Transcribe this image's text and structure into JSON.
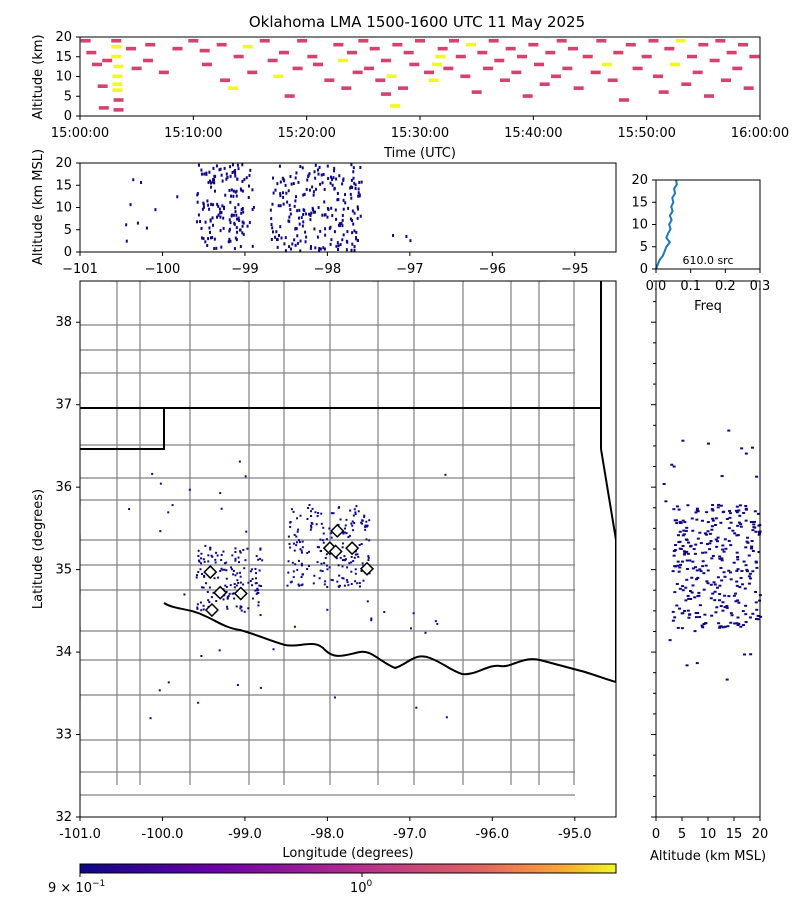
{
  "title": "Oklahoma LMA 1500-1600 UTC 11 May 2025",
  "colors": {
    "pink": "#d3436e",
    "yellow": "#f0f921",
    "navy": "#0d0887",
    "density_line": "#1f77b4",
    "county": "#808080",
    "state": "#000000"
  },
  "chart_data": [
    {
      "id": "time_height",
      "type": "heatmap",
      "xlabel": "Time (UTC)",
      "ylabel": "Altitude (km)",
      "xlim": [
        "15:00:00",
        "16:00:00"
      ],
      "ylim": [
        0,
        20
      ],
      "xticks": [
        "15:00:00",
        "15:10:00",
        "15:20:00",
        "15:30:00",
        "15:40:00",
        "15:50:00",
        "16:00:00"
      ],
      "yticks": [
        "0",
        "5",
        "10",
        "15",
        "20"
      ],
      "cells": [
        {
          "t": 3.2,
          "z": 17.5,
          "c": "yellow"
        },
        {
          "t": 3.2,
          "z": 15,
          "c": "yellow"
        },
        {
          "t": 3.4,
          "z": 12.5,
          "c": "yellow"
        },
        {
          "t": 3.3,
          "z": 10,
          "c": "yellow"
        },
        {
          "t": 3.3,
          "z": 8,
          "c": "yellow"
        },
        {
          "t": 3.3,
          "z": 6.5,
          "c": "yellow"
        },
        {
          "t": 3.2,
          "z": 19,
          "c": "pink"
        },
        {
          "t": 3.4,
          "z": 4,
          "c": "pink"
        },
        {
          "t": 3.4,
          "z": 1.5,
          "c": "pink"
        },
        {
          "t": 0.5,
          "z": 19,
          "c": "pink"
        },
        {
          "t": 1.0,
          "z": 16,
          "c": "pink"
        },
        {
          "t": 1.5,
          "z": 13,
          "c": "pink"
        },
        {
          "t": 2.0,
          "z": 7.5,
          "c": "pink"
        },
        {
          "t": 2.4,
          "z": 14,
          "c": "pink"
        },
        {
          "t": 2.1,
          "z": 2,
          "c": "pink"
        },
        {
          "t": 4.5,
          "z": 17,
          "c": "pink"
        },
        {
          "t": 5.0,
          "z": 12,
          "c": "pink"
        },
        {
          "t": 6.2,
          "z": 18,
          "c": "pink"
        },
        {
          "t": 6.0,
          "z": 14,
          "c": "pink"
        },
        {
          "t": 7.4,
          "z": 11,
          "c": "pink"
        },
        {
          "t": 8.6,
          "z": 17,
          "c": "pink"
        },
        {
          "t": 10.0,
          "z": 19,
          "c": "pink"
        },
        {
          "t": 11.0,
          "z": 16.5,
          "c": "pink"
        },
        {
          "t": 11.2,
          "z": 13,
          "c": "pink"
        },
        {
          "t": 12.5,
          "z": 18,
          "c": "pink"
        },
        {
          "t": 12.8,
          "z": 9,
          "c": "pink"
        },
        {
          "t": 13.5,
          "z": 7,
          "c": "yellow"
        },
        {
          "t": 14.0,
          "z": 15,
          "c": "pink"
        },
        {
          "t": 14.8,
          "z": 17.5,
          "c": "yellow"
        },
        {
          "t": 15.2,
          "z": 11,
          "c": "pink"
        },
        {
          "t": 16.3,
          "z": 19,
          "c": "pink"
        },
        {
          "t": 17.0,
          "z": 14,
          "c": "pink"
        },
        {
          "t": 17.5,
          "z": 10,
          "c": "yellow"
        },
        {
          "t": 18.0,
          "z": 16,
          "c": "pink"
        },
        {
          "t": 18.5,
          "z": 5,
          "c": "pink"
        },
        {
          "t": 19.2,
          "z": 12,
          "c": "pink"
        },
        {
          "t": 19.6,
          "z": 19,
          "c": "pink"
        },
        {
          "t": 20.5,
          "z": 15,
          "c": "pink"
        },
        {
          "t": 21.0,
          "z": 13,
          "c": "pink"
        },
        {
          "t": 22.0,
          "z": 9,
          "c": "pink"
        },
        {
          "t": 22.8,
          "z": 18,
          "c": "pink"
        },
        {
          "t": 23.5,
          "z": 7,
          "c": "pink"
        },
        {
          "t": 23.2,
          "z": 14,
          "c": "yellow"
        },
        {
          "t": 24.0,
          "z": 16,
          "c": "pink"
        },
        {
          "t": 24.5,
          "z": 11,
          "c": "pink"
        },
        {
          "t": 25.0,
          "z": 19,
          "c": "pink"
        },
        {
          "t": 25.5,
          "z": 12,
          "c": "pink"
        },
        {
          "t": 26.0,
          "z": 17,
          "c": "pink"
        },
        {
          "t": 26.5,
          "z": 9,
          "c": "pink"
        },
        {
          "t": 27.0,
          "z": 14,
          "c": "pink"
        },
        {
          "t": 27.5,
          "z": 10,
          "c": "yellow"
        },
        {
          "t": 27.0,
          "z": 5.5,
          "c": "pink"
        },
        {
          "t": 27.8,
          "z": 2.5,
          "c": "yellow"
        },
        {
          "t": 28.0,
          "z": 18,
          "c": "pink"
        },
        {
          "t": 28.5,
          "z": 7,
          "c": "pink"
        },
        {
          "t": 29.0,
          "z": 16,
          "c": "pink"
        },
        {
          "t": 29.5,
          "z": 13,
          "c": "pink"
        },
        {
          "t": 30.0,
          "z": 19,
          "c": "pink"
        },
        {
          "t": 30.8,
          "z": 11,
          "c": "pink"
        },
        {
          "t": 31.5,
          "z": 13,
          "c": "yellow"
        },
        {
          "t": 31.2,
          "z": 9,
          "c": "yellow"
        },
        {
          "t": 31.8,
          "z": 15,
          "c": "yellow"
        },
        {
          "t": 32.0,
          "z": 17,
          "c": "pink"
        },
        {
          "t": 32.5,
          "z": 12,
          "c": "pink"
        },
        {
          "t": 33.0,
          "z": 19,
          "c": "pink"
        },
        {
          "t": 33.6,
          "z": 15,
          "c": "pink"
        },
        {
          "t": 34.0,
          "z": 10,
          "c": "pink"
        },
        {
          "t": 34.5,
          "z": 18,
          "c": "yellow"
        },
        {
          "t": 35.0,
          "z": 6,
          "c": "pink"
        },
        {
          "t": 35.5,
          "z": 16,
          "c": "pink"
        },
        {
          "t": 36.0,
          "z": 12,
          "c": "pink"
        },
        {
          "t": 36.5,
          "z": 19,
          "c": "pink"
        },
        {
          "t": 37.0,
          "z": 14,
          "c": "pink"
        },
        {
          "t": 37.5,
          "z": 9,
          "c": "pink"
        },
        {
          "t": 38.0,
          "z": 17,
          "c": "pink"
        },
        {
          "t": 38.5,
          "z": 11,
          "c": "pink"
        },
        {
          "t": 39.0,
          "z": 15,
          "c": "pink"
        },
        {
          "t": 39.5,
          "z": 5,
          "c": "pink"
        },
        {
          "t": 40.0,
          "z": 18,
          "c": "pink"
        },
        {
          "t": 40.5,
          "z": 13,
          "c": "pink"
        },
        {
          "t": 41.0,
          "z": 8,
          "c": "pink"
        },
        {
          "t": 41.5,
          "z": 16,
          "c": "pink"
        },
        {
          "t": 42.0,
          "z": 10,
          "c": "pink"
        },
        {
          "t": 42.5,
          "z": 19,
          "c": "pink"
        },
        {
          "t": 43.0,
          "z": 12,
          "c": "pink"
        },
        {
          "t": 43.5,
          "z": 17,
          "c": "pink"
        },
        {
          "t": 44.0,
          "z": 7,
          "c": "pink"
        },
        {
          "t": 44.8,
          "z": 15,
          "c": "pink"
        },
        {
          "t": 45.5,
          "z": 11,
          "c": "pink"
        },
        {
          "t": 46.0,
          "z": 19,
          "c": "pink"
        },
        {
          "t": 46.5,
          "z": 13,
          "c": "yellow"
        },
        {
          "t": 47.0,
          "z": 9,
          "c": "pink"
        },
        {
          "t": 47.5,
          "z": 16,
          "c": "pink"
        },
        {
          "t": 48.0,
          "z": 4,
          "c": "pink"
        },
        {
          "t": 48.6,
          "z": 18,
          "c": "pink"
        },
        {
          "t": 49.2,
          "z": 12,
          "c": "pink"
        },
        {
          "t": 50.0,
          "z": 15,
          "c": "pink"
        },
        {
          "t": 50.6,
          "z": 19,
          "c": "pink"
        },
        {
          "t": 51.0,
          "z": 10,
          "c": "pink"
        },
        {
          "t": 51.5,
          "z": 6,
          "c": "pink"
        },
        {
          "t": 52.0,
          "z": 17,
          "c": "pink"
        },
        {
          "t": 52.5,
          "z": 13,
          "c": "yellow"
        },
        {
          "t": 53.0,
          "z": 19,
          "c": "yellow"
        },
        {
          "t": 53.5,
          "z": 8,
          "c": "pink"
        },
        {
          "t": 54.0,
          "z": 15,
          "c": "pink"
        },
        {
          "t": 54.5,
          "z": 11,
          "c": "pink"
        },
        {
          "t": 55.0,
          "z": 18,
          "c": "pink"
        },
        {
          "t": 55.5,
          "z": 5,
          "c": "pink"
        },
        {
          "t": 56.0,
          "z": 14,
          "c": "pink"
        },
        {
          "t": 56.5,
          "z": 19,
          "c": "pink"
        },
        {
          "t": 57.0,
          "z": 9,
          "c": "pink"
        },
        {
          "t": 57.5,
          "z": 16,
          "c": "pink"
        },
        {
          "t": 58.0,
          "z": 12,
          "c": "pink"
        },
        {
          "t": 58.5,
          "z": 18,
          "c": "pink"
        },
        {
          "t": 59.0,
          "z": 7,
          "c": "pink"
        },
        {
          "t": 59.5,
          "z": 15,
          "c": "pink"
        }
      ]
    },
    {
      "id": "lon_alt",
      "type": "scatter",
      "xlabel": "",
      "ylabel": "Altitude (km MSL)",
      "xlim": [
        -101,
        -94.5
      ],
      "ylim": [
        0,
        20
      ],
      "xticks": [
        "−101",
        "−100",
        "−99",
        "−98",
        "−97",
        "−96",
        "−95"
      ],
      "yticks": [
        "0",
        "5",
        "10",
        "15",
        "20"
      ],
      "clusters": [
        {
          "lon_min": -99.6,
          "lon_max": -98.9,
          "alt_min": 1,
          "alt_max": 20,
          "count": 150
        },
        {
          "lon_min": -98.7,
          "lon_max": -97.6,
          "alt_min": 0.5,
          "alt_max": 20,
          "count": 210
        },
        {
          "lon_min": -100.5,
          "lon_max": -96.6,
          "alt_min": 1,
          "alt_max": 18,
          "count": 30
        }
      ]
    },
    {
      "id": "alt_density",
      "type": "line",
      "xlabel": "Freq",
      "ylabel": "",
      "xlim": [
        0,
        0.3
      ],
      "ylim": [
        0,
        20
      ],
      "xticks": [
        "0.0",
        "0.1",
        "0.2",
        "0.3"
      ],
      "yticks": [
        "0",
        "5",
        "10",
        "15",
        "20"
      ],
      "annotation": "610.0 src",
      "x": [
        0.0,
        0.005,
        0.01,
        0.02,
        0.025,
        0.03,
        0.04,
        0.03,
        0.035,
        0.042,
        0.038,
        0.045,
        0.04,
        0.048,
        0.044,
        0.05,
        0.047,
        0.055,
        0.052,
        0.06,
        0.058
      ],
      "y": [
        0,
        1,
        2,
        3,
        4,
        5,
        6,
        7,
        8,
        9,
        10,
        11,
        12,
        13,
        14,
        15,
        16,
        17,
        18,
        19,
        20
      ]
    },
    {
      "id": "plan_view",
      "type": "scatter",
      "xlabel": "Longitude (degrees)",
      "ylabel": "Latitude (degrees)",
      "xlim": [
        -101,
        -94.5
      ],
      "ylim": [
        32,
        38.5
      ],
      "xticks": [
        "-101.0",
        "-100.0",
        "-99.0",
        "-98.0",
        "-97.0",
        "-96.0",
        "-95.0"
      ],
      "yticks": [
        "32",
        "33",
        "34",
        "35",
        "36",
        "37",
        "38"
      ],
      "clusters": [
        {
          "lon_min": -99.6,
          "lon_max": -98.8,
          "lat_min": 34.5,
          "lat_max": 35.3,
          "count": 150
        },
        {
          "lon_min": -98.5,
          "lon_max": -97.5,
          "lat_min": 34.8,
          "lat_max": 35.8,
          "count": 200
        },
        {
          "lon_min": -100.6,
          "lon_max": -96.5,
          "lat_min": 33.2,
          "lat_max": 36.6,
          "count": 40
        }
      ],
      "stations": [
        {
          "lon": -99.42,
          "lat": 34.97
        },
        {
          "lon": -99.3,
          "lat": 34.72
        },
        {
          "lon": -99.05,
          "lat": 34.71
        },
        {
          "lon": -99.4,
          "lat": 34.51
        },
        {
          "lon": -97.88,
          "lat": 35.47
        },
        {
          "lon": -97.97,
          "lat": 35.26
        },
        {
          "lon": -97.9,
          "lat": 35.22
        },
        {
          "lon": -97.7,
          "lat": 35.26
        },
        {
          "lon": -97.52,
          "lat": 35.01
        }
      ]
    },
    {
      "id": "alt_lat",
      "type": "scatter",
      "xlabel": "Altitude (km MSL)",
      "ylabel": "",
      "xlim": [
        0,
        20
      ],
      "ylim": [
        32,
        38.5
      ],
      "xticks": [
        "0",
        "5",
        "10",
        "15",
        "20"
      ],
      "clusters": [
        {
          "alt_min": 3,
          "alt_max": 20,
          "lat_min": 34.3,
          "lat_max": 35.8,
          "count": 300
        },
        {
          "alt_min": 1,
          "alt_max": 20,
          "lat_min": 33.5,
          "lat_max": 36.7,
          "count": 30
        }
      ]
    },
    {
      "id": "colorbar",
      "type": "colorbar",
      "scale": "log",
      "tick_labels": [
        "9 × 10",
        "−1",
        "10",
        "0"
      ]
    }
  ]
}
